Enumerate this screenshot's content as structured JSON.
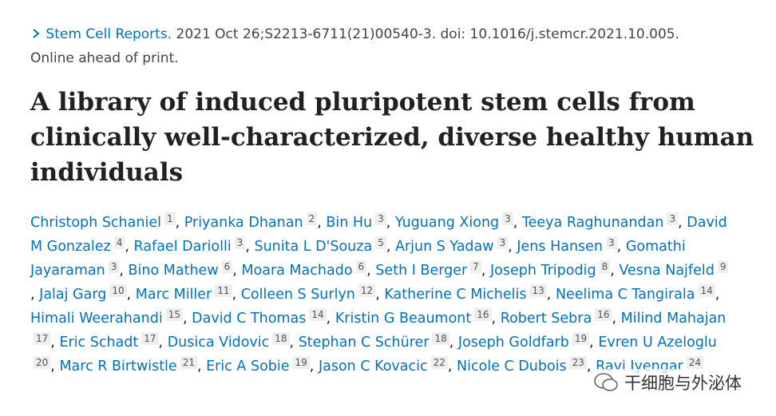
{
  "citation": {
    "journal": "Stem Cell Reports.",
    "details": "2021 Oct 26;S2213-6711(21)00540-3. doi: 10.1016/j.stemcr.2021.10.005.",
    "status": "Online ahead of print."
  },
  "title": "A library of induced pluripotent stem cells from clinically well-characterized, diverse healthy human individuals",
  "authors": {
    "separator": ",",
    "list": [
      {
        "name": "Christoph Schaniel",
        "aff": 1
      },
      {
        "name": "Priyanka Dhanan",
        "aff": 2
      },
      {
        "name": "Bin Hu",
        "aff": 3
      },
      {
        "name": "Yuguang Xiong",
        "aff": 3
      },
      {
        "name": "Teeya Raghunandan",
        "aff": 3
      },
      {
        "name": "David M Gonzalez",
        "aff": 4
      },
      {
        "name": "Rafael Dariolli",
        "aff": 3
      },
      {
        "name": "Sunita L D'Souza",
        "aff": 5
      },
      {
        "name": "Arjun S Yadaw",
        "aff": 3
      },
      {
        "name": "Jens Hansen",
        "aff": 3
      },
      {
        "name": "Gomathi Jayaraman",
        "aff": 3
      },
      {
        "name": "Bino Mathew",
        "aff": 6
      },
      {
        "name": "Moara Machado",
        "aff": 6
      },
      {
        "name": "Seth I Berger",
        "aff": 7
      },
      {
        "name": "Joseph Tripodig",
        "aff": 8
      },
      {
        "name": "Vesna Najfeld",
        "aff": 9
      },
      {
        "name": "Jalaj Garg",
        "aff": 10
      },
      {
        "name": "Marc Miller",
        "aff": 11
      },
      {
        "name": "Colleen S Surlyn",
        "aff": 12
      },
      {
        "name": "Katherine C Michelis",
        "aff": 13
      },
      {
        "name": "Neelima C Tangirala",
        "aff": 14
      },
      {
        "name": "Himali Weerahandi",
        "aff": 15
      },
      {
        "name": "David C Thomas",
        "aff": 14
      },
      {
        "name": "Kristin G Beaumont",
        "aff": 16
      },
      {
        "name": "Robert Sebra",
        "aff": 16
      },
      {
        "name": "Milind Mahajan",
        "aff": 17
      },
      {
        "name": "Eric Schadt",
        "aff": 17
      },
      {
        "name": "Dusica Vidovic",
        "aff": 18
      },
      {
        "name": "Stephan C Schürer",
        "aff": 18
      },
      {
        "name": "Joseph Goldfarb",
        "aff": 19
      },
      {
        "name": "Evren U Azeloglu",
        "aff": 20
      },
      {
        "name": "Marc R Birtwistle",
        "aff": 21
      },
      {
        "name": "Eric A Sobie",
        "aff": 19
      },
      {
        "name": "Jason C Kovacic",
        "aff": 22
      },
      {
        "name": "Nicole C Dubois",
        "aff": 23
      },
      {
        "name": "Ravi Iyengar",
        "aff": 24
      }
    ]
  },
  "watermark": "干细胞与外泌体"
}
